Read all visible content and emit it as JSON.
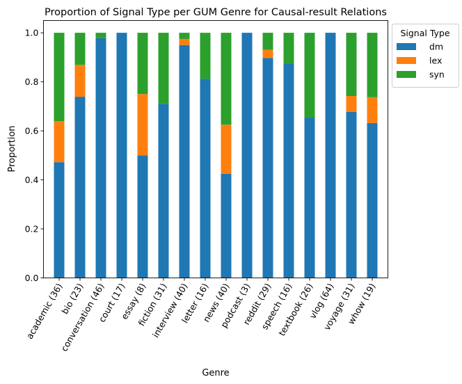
{
  "chart_data": {
    "type": "bar",
    "stacked": true,
    "title": "Proportion of Signal Type per GUM Genre for Causal-result Relations",
    "xlabel": "Genre",
    "ylabel": "Proportion",
    "ylim": [
      0,
      1.05
    ],
    "yticks": [
      "0.0",
      "0.2",
      "0.4",
      "0.6",
      "0.8",
      "1.0"
    ],
    "grid": false,
    "legend": {
      "title": "Signal Type",
      "placement": "outside-top-right"
    },
    "categories": [
      "academic (36)",
      "bio (23)",
      "conversation (46)",
      "court (17)",
      "essay (8)",
      "fiction (31)",
      "interview (40)",
      "letter (16)",
      "news (40)",
      "podcast (3)",
      "reddit (29)",
      "speech (16)",
      "textbook (26)",
      "vlog (64)",
      "voyage (31)",
      "whow (19)"
    ],
    "series": [
      {
        "name": "dm",
        "color": "#1f77b4",
        "values": [
          0.472,
          0.739,
          0.978,
          1.0,
          0.5,
          0.71,
          0.95,
          0.8125,
          0.425,
          1.0,
          0.897,
          0.875,
          0.654,
          1.0,
          0.677,
          0.632
        ]
      },
      {
        "name": "lex",
        "color": "#ff7f0e",
        "values": [
          0.167,
          0.13,
          0.0,
          0.0,
          0.25,
          0.0,
          0.025,
          0.0,
          0.2,
          0.0,
          0.034,
          0.0,
          0.0,
          0.0,
          0.065,
          0.105
        ]
      },
      {
        "name": "syn",
        "color": "#2ca02c",
        "values": [
          0.361,
          0.131,
          0.022,
          0.0,
          0.25,
          0.29,
          0.025,
          0.1875,
          0.375,
          0.0,
          0.069,
          0.125,
          0.346,
          0.0,
          0.258,
          0.263
        ]
      }
    ]
  }
}
